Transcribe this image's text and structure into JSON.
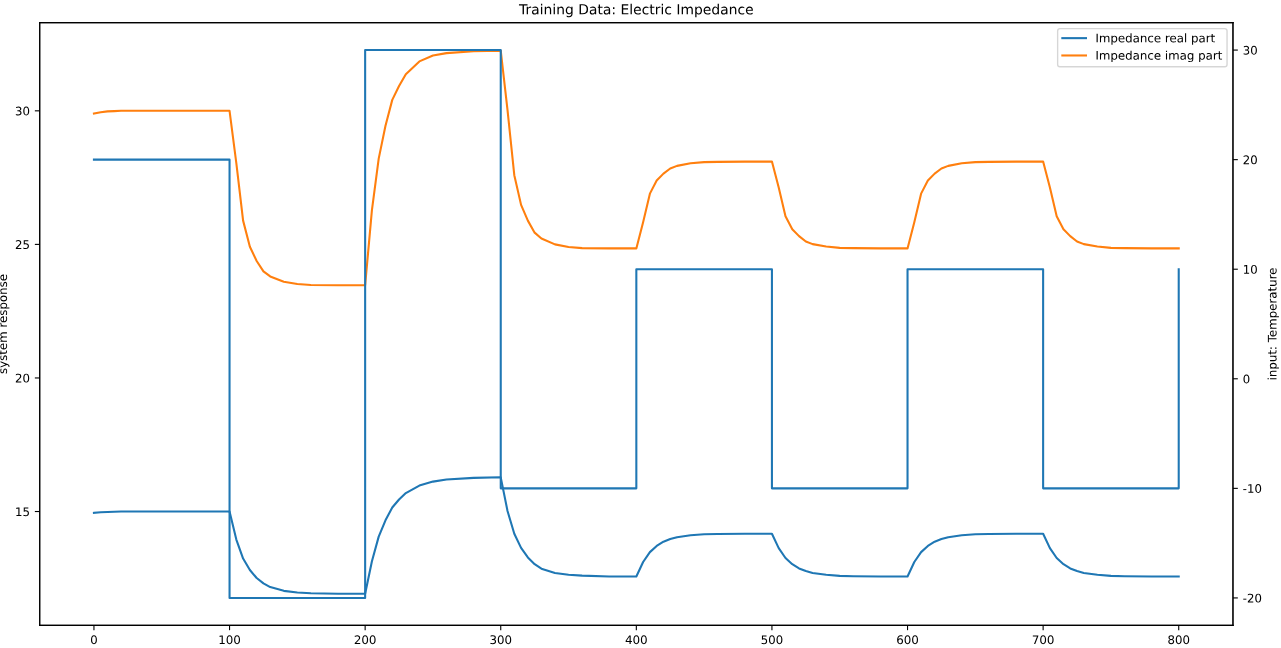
{
  "chart_data": {
    "type": "line",
    "title": "Training Data: Electric Impedance",
    "ylabel": "system response",
    "y2label": "input: Temperature",
    "x": [
      0,
      5,
      10,
      15,
      20,
      25,
      30,
      40,
      50,
      60,
      80,
      100,
      105,
      110,
      115,
      120,
      125,
      130,
      140,
      150,
      160,
      180,
      200,
      205,
      210,
      215,
      220,
      225,
      230,
      240,
      250,
      260,
      280,
      300,
      305,
      310,
      315,
      320,
      325,
      330,
      340,
      350,
      360,
      380,
      400,
      405,
      410,
      415,
      420,
      425,
      430,
      440,
      450,
      460,
      480,
      500,
      505,
      510,
      515,
      520,
      525,
      530,
      540,
      550,
      560,
      580,
      600,
      605,
      610,
      615,
      620,
      625,
      630,
      640,
      650,
      660,
      680,
      700,
      705,
      710,
      715,
      720,
      725,
      730,
      740,
      750,
      760,
      780,
      800
    ],
    "series": [
      {
        "name": "Impedance real part",
        "color": "#1f77b4",
        "values": [
          14.95,
          14.97,
          14.98,
          14.99,
          15,
          15,
          15,
          15,
          15,
          15,
          15,
          15,
          13.95,
          13.24,
          12.81,
          12.51,
          12.31,
          12.17,
          12.03,
          11.97,
          11.94,
          11.92,
          11.92,
          13.14,
          14.06,
          14.67,
          15.15,
          15.45,
          15.69,
          15.97,
          16.12,
          16.2,
          16.26,
          16.28,
          15.02,
          14.17,
          13.64,
          13.28,
          13.03,
          12.86,
          12.7,
          12.63,
          12.6,
          12.57,
          12.57,
          13.11,
          13.48,
          13.71,
          13.87,
          13.97,
          14.04,
          14.11,
          14.15,
          14.16,
          14.17,
          14.17,
          13.63,
          13.26,
          13.03,
          12.87,
          12.77,
          12.7,
          12.63,
          12.59,
          12.58,
          12.57,
          12.57,
          13.11,
          13.48,
          13.71,
          13.87,
          13.97,
          14.04,
          14.11,
          14.15,
          14.16,
          14.17,
          14.17,
          13.63,
          13.26,
          13.03,
          12.87,
          12.77,
          12.7,
          12.63,
          12.59,
          12.58,
          12.57,
          12.57
        ]
      },
      {
        "name": "Impedance imag part",
        "color": "#ff7f0e",
        "values": [
          29.9,
          29.95,
          29.98,
          29.99,
          30,
          30,
          30,
          30,
          30,
          30,
          30,
          30,
          28.04,
          25.89,
          24.91,
          24.38,
          23.99,
          23.8,
          23.6,
          23.52,
          23.48,
          23.47,
          23.47,
          26.28,
          28.21,
          29.44,
          30.41,
          30.93,
          31.37,
          31.85,
          32.07,
          32.16,
          32.23,
          32.25,
          30.03,
          27.59,
          26.48,
          25.89,
          25.44,
          25.22,
          25,
          24.9,
          24.86,
          24.85,
          24.85,
          25.83,
          26.9,
          27.39,
          27.65,
          27.84,
          27.94,
          28.04,
          28.08,
          28.09,
          28.1,
          28.1,
          27.13,
          26.05,
          25.57,
          25.31,
          25.11,
          25.01,
          24.92,
          24.87,
          24.86,
          24.85,
          24.85,
          25.83,
          26.9,
          27.39,
          27.65,
          27.84,
          27.94,
          28.04,
          28.08,
          28.09,
          28.1,
          28.1,
          27.13,
          26.05,
          25.57,
          25.31,
          25.11,
          25.01,
          24.92,
          24.87,
          24.86,
          24.85,
          24.85
        ]
      },
      {
        "color": "#1f77b4",
        "axis": "y2",
        "x": [
          0,
          100,
          100,
          200,
          200,
          300,
          300,
          400,
          400,
          500,
          500,
          600,
          600,
          700,
          700,
          800,
          800
        ],
        "values": [
          20,
          20,
          -20,
          -20,
          30,
          30,
          -10,
          -10,
          10,
          10,
          -10,
          -10,
          10,
          10,
          -10,
          -10,
          10
        ]
      }
    ],
    "xlim": [
      -40,
      840
    ],
    "xticks": [
      0,
      100,
      200,
      300,
      400,
      500,
      600,
      700,
      800
    ],
    "ylim": [
      10.74,
      33.3
    ],
    "yticks": [
      15,
      20,
      25,
      30
    ],
    "y2lim": [
      -22.5,
      32.5
    ],
    "y2ticks": [
      -20,
      -10,
      0,
      10,
      20,
      30
    ],
    "legend": "top right",
    "grid": false
  }
}
